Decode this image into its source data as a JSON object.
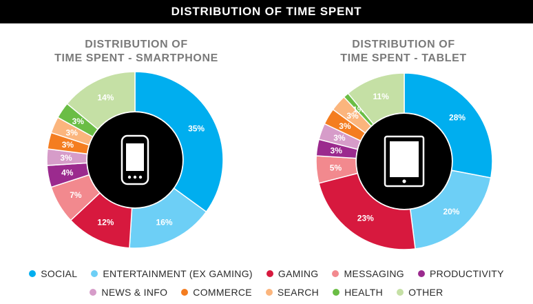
{
  "header": {
    "title": "DISTRIBUTION OF TIME SPENT"
  },
  "chart_data": [
    {
      "type": "pie",
      "title_line1": "DISTRIBUTION OF",
      "title_line2": "TIME SPENT - SMARTPHONE",
      "device": "smartphone",
      "slices": [
        {
          "category": "SOCIAL",
          "value": 35,
          "label": "35%"
        },
        {
          "category": "ENTERTAINMENT (EX GAMING)",
          "value": 16,
          "label": "16%"
        },
        {
          "category": "GAMING",
          "value": 12,
          "label": "12%"
        },
        {
          "category": "MESSAGING",
          "value": 7,
          "label": "7%"
        },
        {
          "category": "PRODUCTIVITY",
          "value": 4,
          "label": "4%"
        },
        {
          "category": "NEWS & INFO",
          "value": 3,
          "label": "3%"
        },
        {
          "category": "COMMERCE",
          "value": 3,
          "label": "3%"
        },
        {
          "category": "SEARCH",
          "value": 3,
          "label": "3%"
        },
        {
          "category": "HEALTH",
          "value": 3,
          "label": "3%"
        },
        {
          "category": "OTHER",
          "value": 14,
          "label": "14%"
        }
      ]
    },
    {
      "type": "pie",
      "title_line1": "DISTRIBUTION OF",
      "title_line2": "TIME SPENT - TABLET",
      "device": "tablet",
      "slices": [
        {
          "category": "SOCIAL",
          "value": 28,
          "label": "28%"
        },
        {
          "category": "ENTERTAINMENT (EX GAMING)",
          "value": 20,
          "label": "20%"
        },
        {
          "category": "GAMING",
          "value": 23,
          "label": "23%"
        },
        {
          "category": "MESSAGING",
          "value": 5,
          "label": "5%"
        },
        {
          "category": "PRODUCTIVITY",
          "value": 3,
          "label": "3%"
        },
        {
          "category": "NEWS & INFO",
          "value": 3,
          "label": "3%"
        },
        {
          "category": "COMMERCE",
          "value": 3,
          "label": "3%"
        },
        {
          "category": "SEARCH",
          "value": 3,
          "label": "3%"
        },
        {
          "category": "HEALTH",
          "value": 1,
          "label": "1%"
        },
        {
          "category": "OTHER",
          "value": 11,
          "label": "11%"
        }
      ]
    }
  ],
  "legend": [
    {
      "label": "SOCIAL",
      "color": "#00aeef"
    },
    {
      "label": "ENTERTAINMENT (EX GAMING)",
      "color": "#6dcff6"
    },
    {
      "label": "GAMING",
      "color": "#d7193e"
    },
    {
      "label": "MESSAGING",
      "color": "#f2898e"
    },
    {
      "label": "PRODUCTIVITY",
      "color": "#9b2a8e"
    },
    {
      "label": "NEWS & INFO",
      "color": "#d69cc9"
    },
    {
      "label": "COMMERCE",
      "color": "#f47d20"
    },
    {
      "label": "SEARCH",
      "color": "#fbb57d"
    },
    {
      "label": "HEALTH",
      "color": "#6abd45"
    },
    {
      "label": "OTHER",
      "color": "#c5e0a5"
    }
  ]
}
